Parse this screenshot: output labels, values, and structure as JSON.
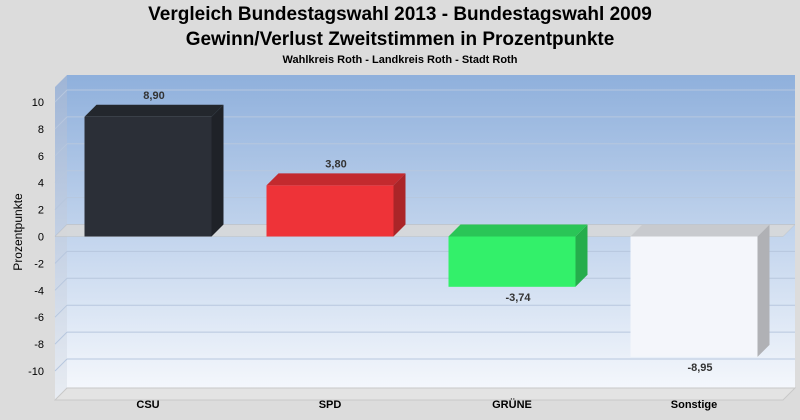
{
  "chart_data": {
    "type": "bar",
    "title": "Vergleich Bundestagswahl 2013  - Bundestagswahl 2009",
    "subtitle": "Gewinn/Verlust Zweitstimmen in Prozentpunkte",
    "subsubtitle": "Wahlkreis Roth - Landkreis Roth - Stadt Roth",
    "xlabel": "",
    "ylabel": "Prozentpunkte",
    "ylim": [
      -10,
      10
    ],
    "yticks": [
      10,
      8,
      6,
      4,
      2,
      0,
      -2,
      -4,
      -6,
      -8,
      -10
    ],
    "categories": [
      "CSU",
      "SPD",
      "GRÜNE",
      "Sonstige"
    ],
    "values": [
      8.9,
      3.8,
      -3.74,
      -8.95
    ],
    "value_labels": [
      "8,90",
      "3,80",
      "-3,74",
      "-8,95"
    ],
    "colors": [
      "#2b2f37",
      "#ee3338",
      "#33f06a",
      "#f4f6fb"
    ],
    "grid": true,
    "style": "3d"
  }
}
